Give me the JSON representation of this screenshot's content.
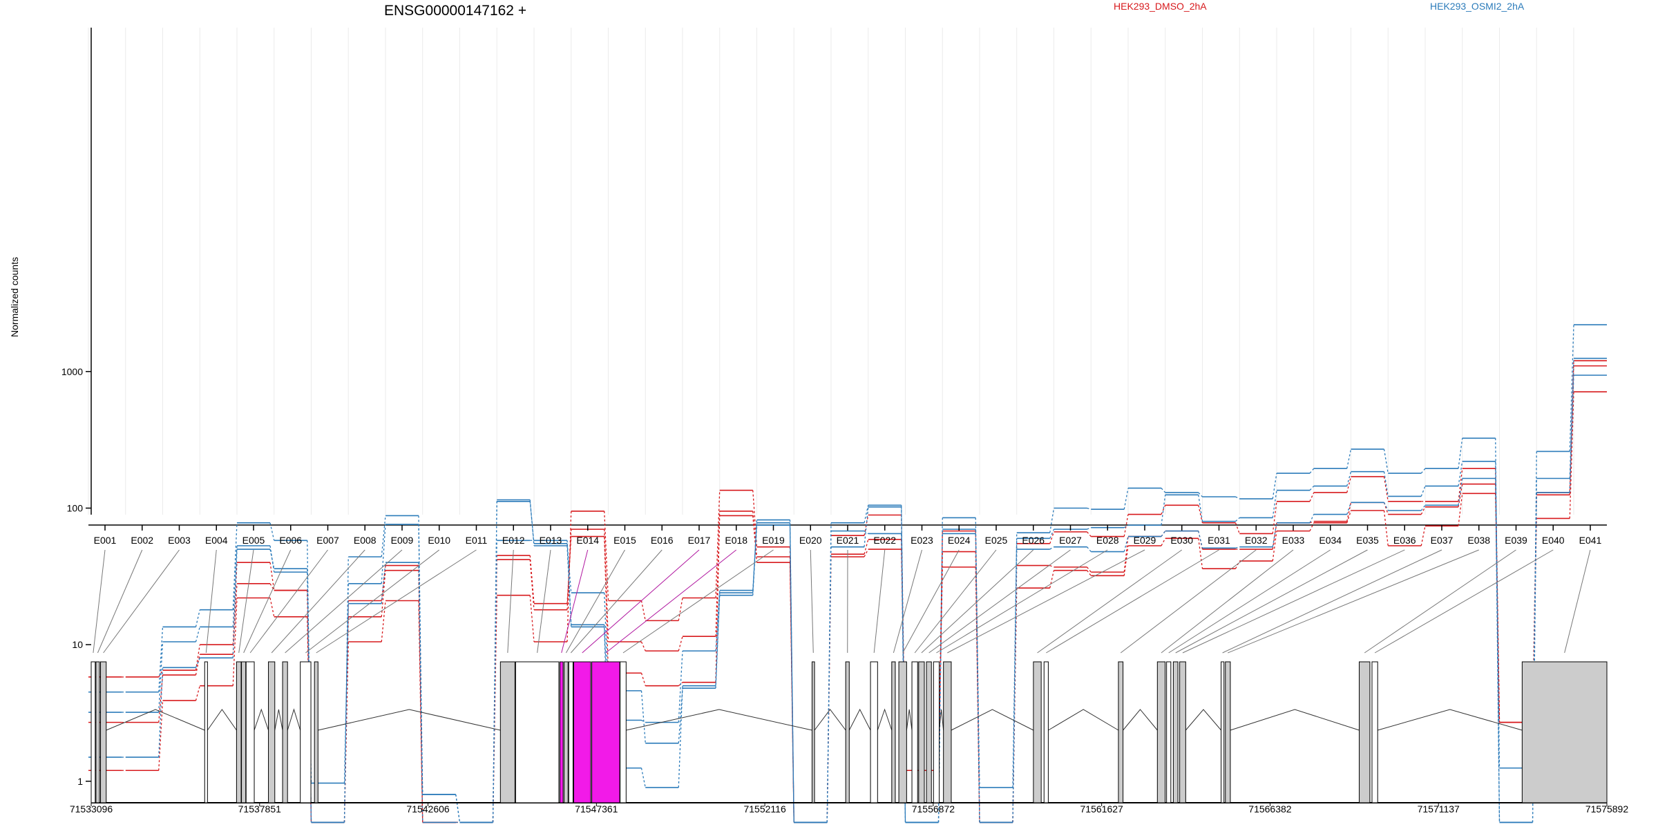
{
  "chart_data": {
    "type": "line",
    "title": "ENSG00000147162 +",
    "ylabel": "Normalized counts",
    "xlabel": "",
    "y_scale": "log",
    "ylim": [
      0.65,
      2500
    ],
    "y_ticks": [
      1,
      10,
      100,
      1000
    ],
    "y_tick_labels": [
      "1",
      "10",
      "100",
      "1000"
    ],
    "grid": "faint vertical lines at exon boundaries",
    "legend_position": "top-right",
    "colors": {
      "dmso": "#d7191c",
      "osmi2": "#2b7bba",
      "highlight": "#f21ae8",
      "exon_fill": "#cccccc"
    },
    "categories": [
      "E001",
      "E002",
      "E003",
      "E004",
      "E005",
      "E006",
      "E007",
      "E008",
      "E009",
      "E010",
      "E011",
      "E012",
      "E013",
      "E014",
      "E015",
      "E016",
      "E017",
      "E018",
      "E019",
      "E020",
      "E021",
      "E022",
      "E023",
      "E024",
      "E025",
      "E026",
      "E027",
      "E028",
      "E029",
      "E030",
      "E031",
      "E032",
      "E033",
      "E034",
      "E035",
      "E036",
      "E037",
      "E038",
      "E039",
      "E040",
      "E041"
    ],
    "highlighted_exons": [
      "E014",
      "E017",
      "E018"
    ],
    "series": [
      {
        "name": "HEK293_DMSO_2hA",
        "group": "dmso",
        "values": [
          1.2,
          1.2,
          3.9,
          5.0,
          22,
          16,
          0.5,
          10.5,
          21,
          0.5,
          0.5,
          23,
          10.5,
          95,
          21,
          15,
          22,
          135,
          52,
          0.5,
          46,
          59,
          1.2,
          37,
          0.5,
          26,
          35,
          32,
          53,
          60,
          36,
          41,
          68,
          78,
          96,
          53,
          74,
          128,
          2.7,
          84,
          710
        ]
      },
      {
        "name": "HEK293_DMSO_2hA",
        "group": "dmso",
        "values": [
          2.7,
          2.7,
          6.0,
          8.5,
          28,
          25,
          0.5,
          16,
          35,
          0.5,
          0.5,
          42,
          18,
          70,
          10.5,
          9,
          11.5,
          95,
          44,
          0.5,
          44,
          50,
          1.2,
          48,
          0.5,
          38,
          37,
          34,
          62,
          68,
          50,
          50,
          78,
          80,
          110,
          90,
          102,
          150,
          2.7,
          125,
          1100
        ]
      },
      {
        "name": "HEK293_DMSO_2hA",
        "group": "dmso",
        "values": [
          5.8,
          5.8,
          6.5,
          10,
          40,
          25,
          0.5,
          21,
          38,
          0.5,
          0.5,
          45,
          20,
          62,
          6.2,
          5.0,
          5.3,
          88,
          40,
          0.5,
          63,
          89,
          1.2,
          68,
          0.5,
          55,
          67,
          62,
          90,
          105,
          78,
          65,
          112,
          130,
          170,
          112,
          112,
          195,
          2.7,
          130,
          1200
        ]
      },
      {
        "name": "HEK293_OSMI2_2hA",
        "group": "osmi2",
        "values": [
          1.5,
          1.5,
          6.8,
          8.0,
          50,
          36,
          0.97,
          20,
          40,
          0.8,
          0.5,
          112,
          55,
          24,
          4.6,
          1.9,
          4.8,
          23,
          75,
          0.5,
          68,
          65,
          0.5,
          65,
          0.5,
          50,
          52,
          48,
          62,
          68,
          51,
          52,
          78,
          90,
          110,
          96,
          105,
          165,
          0.5,
          130,
          940
        ]
      },
      {
        "name": "HEK293_OSMI2_2hA",
        "group": "osmi2",
        "values": [
          3.2,
          3.2,
          10.5,
          13.5,
          53,
          34,
          0.5,
          28,
          76,
          0.8,
          0.5,
          58,
          58,
          14,
          2.8,
          2.7,
          9,
          25,
          78,
          0.5,
          78,
          105,
          0.5,
          70,
          0.9,
          60,
          70,
          72,
          75,
          125,
          80,
          85,
          135,
          145,
          185,
          122,
          145,
          220,
          1.25,
          165,
          1250
        ]
      },
      {
        "name": "HEK293_OSMI2_2hA",
        "group": "osmi2",
        "values": [
          4.5,
          4.5,
          13.5,
          18,
          78,
          58,
          0.5,
          44,
          88,
          0.5,
          0.5,
          115,
          53,
          13.5,
          1.25,
          0.9,
          5.0,
          24,
          82,
          0.5,
          52,
          102,
          0.5,
          85,
          0.5,
          66,
          100,
          98,
          140,
          130,
          121,
          117,
          180,
          195,
          270,
          180,
          195,
          325,
          0.5,
          260,
          2200
        ]
      }
    ],
    "gene_model": {
      "coordinate_ticks": [
        "71533096",
        "71537851",
        "71542606",
        "71547361",
        "71552116",
        "71556872",
        "71561627",
        "71566382",
        "71571137",
        "71575892"
      ],
      "range": [
        71533096,
        71575892
      ]
    }
  }
}
